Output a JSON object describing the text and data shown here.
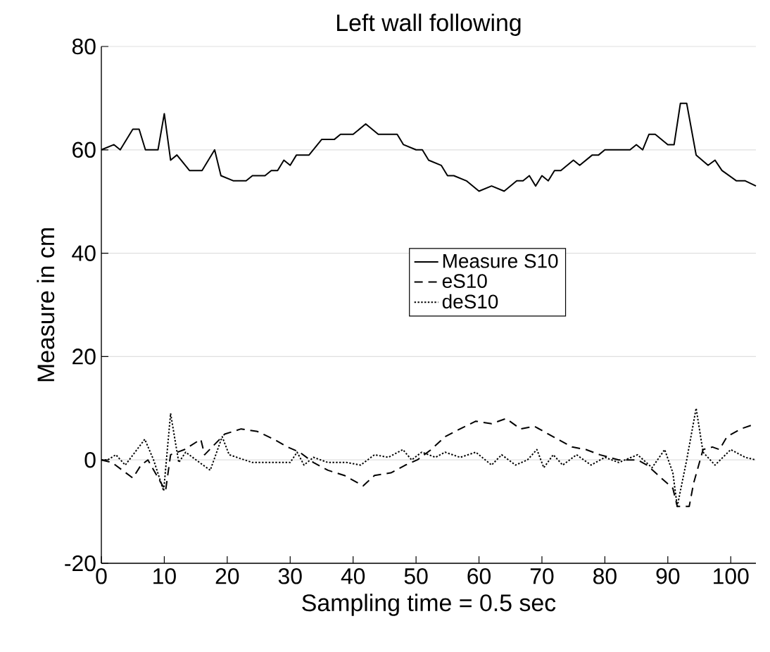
{
  "chart_data": {
    "type": "line",
    "title": "Left wall following",
    "xlabel": "Sampling time = 0.5 sec",
    "ylabel": "Measure in cm",
    "xlim": [
      0,
      104
    ],
    "ylim": [
      -20,
      80
    ],
    "xticks": [
      0,
      10,
      20,
      30,
      40,
      50,
      60,
      70,
      80,
      90,
      100
    ],
    "yticks": [
      -20,
      0,
      20,
      40,
      60,
      80
    ],
    "grid": "y",
    "legend": "center",
    "series": [
      {
        "name": "Measure S10",
        "color": "#000000",
        "line_style": "solid",
        "x": [
          0,
          2,
          3,
          5,
          6,
          7,
          9,
          10,
          11,
          12,
          14,
          16,
          18,
          19,
          21,
          23,
          24,
          26,
          27,
          28,
          29,
          30,
          31,
          33,
          35,
          37,
          38,
          40,
          42,
          44,
          47,
          48,
          50,
          51,
          52,
          54,
          55,
          56,
          58,
          60,
          62,
          64,
          66,
          67,
          68,
          69,
          70,
          71,
          72,
          73,
          75,
          76,
          78,
          79,
          80,
          84,
          85,
          86,
          87,
          88,
          90,
          91,
          92,
          93,
          94.5,
          96.4,
          97.5,
          98.6,
          100.9,
          102.3,
          104
        ],
        "values": [
          60,
          61,
          60,
          64,
          64,
          60,
          60,
          67,
          58,
          59,
          56,
          56,
          60,
          55,
          54,
          54,
          55,
          55,
          56,
          56,
          58,
          57,
          59,
          59,
          62,
          62,
          63,
          63,
          65,
          63,
          63,
          61,
          60,
          60,
          58,
          57,
          55,
          55,
          54,
          52,
          53,
          52,
          54,
          54,
          55,
          53,
          55,
          54,
          56,
          56,
          58,
          57,
          59,
          59,
          60,
          60,
          61,
          60,
          63,
          63,
          61,
          61,
          69,
          69,
          59,
          57,
          58,
          56,
          54,
          54,
          53
        ]
      },
      {
        "name": "eS10",
        "color": "#000000",
        "line_style": "dashed",
        "x": [
          0,
          1.7,
          5,
          6.3,
          7.4,
          10.2,
          11,
          13.2,
          15.8,
          16.4,
          19.6,
          22.2,
          24.8,
          27.4,
          29.6,
          31.5,
          33.7,
          36,
          38.6,
          41.6,
          43.4,
          46,
          48.3,
          50.2,
          52.4,
          54.6,
          57,
          59.5,
          62,
          64.3,
          66.6,
          68.8,
          70.3,
          72.5,
          74.8,
          77,
          79.2,
          82.2,
          85.2,
          86.7,
          88.5,
          90.8,
          91.5,
          93.4,
          94.1,
          95.6,
          97.1,
          98.2,
          99.4,
          101.6,
          104
        ],
        "values": [
          0,
          -0.5,
          -3.5,
          -1,
          0,
          -6,
          1,
          2,
          4,
          1,
          5,
          6,
          5.5,
          4,
          2.5,
          1.5,
          -0.5,
          -2,
          -3,
          -5,
          -3,
          -2.5,
          -1,
          0,
          2,
          4.5,
          6,
          7.5,
          7,
          8,
          6,
          6.5,
          5.5,
          4,
          2.5,
          2,
          1,
          0,
          0,
          -1,
          -3,
          -5.5,
          -9,
          -9,
          -4.5,
          2,
          2.5,
          2,
          4.5,
          6,
          7
        ]
      },
      {
        "name": "deS10",
        "color": "#000000",
        "line_style": "dotted",
        "x": [
          0,
          1,
          2.3,
          3.8,
          6.9,
          8.3,
          9.9,
          11,
          12.3,
          13.4,
          15.6,
          17.3,
          19.2,
          20.3,
          24,
          27.8,
          30,
          31.1,
          32.2,
          33.7,
          36,
          39,
          41.2,
          43.4,
          45.6,
          47.9,
          49.3,
          50.9,
          53.1,
          54.6,
          57,
          59.5,
          62,
          63.6,
          65.8,
          67.7,
          69.2,
          70.3,
          71.8,
          73.3,
          75.5,
          77.8,
          80,
          82.2,
          85.2,
          87.5,
          89.5,
          90.8,
          91.5,
          93,
          94.5,
          95.6,
          97.5,
          100,
          102.3,
          104
        ],
        "values": [
          0,
          0,
          1,
          -1,
          4,
          0,
          -6,
          9,
          -0.5,
          1.5,
          -0.5,
          -2,
          4.5,
          1,
          -0.5,
          -0.5,
          -0.5,
          1.5,
          -1,
          0.5,
          -0.5,
          -0.5,
          -1,
          1,
          0.5,
          2,
          0,
          1.5,
          0.5,
          1.5,
          0.5,
          1.5,
          -1,
          1,
          -1,
          0,
          2,
          -1.5,
          1,
          -1,
          1,
          -1,
          0.5,
          -0.5,
          1,
          -1.5,
          2,
          -2.5,
          -9,
          0,
          10,
          1.5,
          -1,
          2,
          0.5,
          0
        ]
      }
    ]
  }
}
